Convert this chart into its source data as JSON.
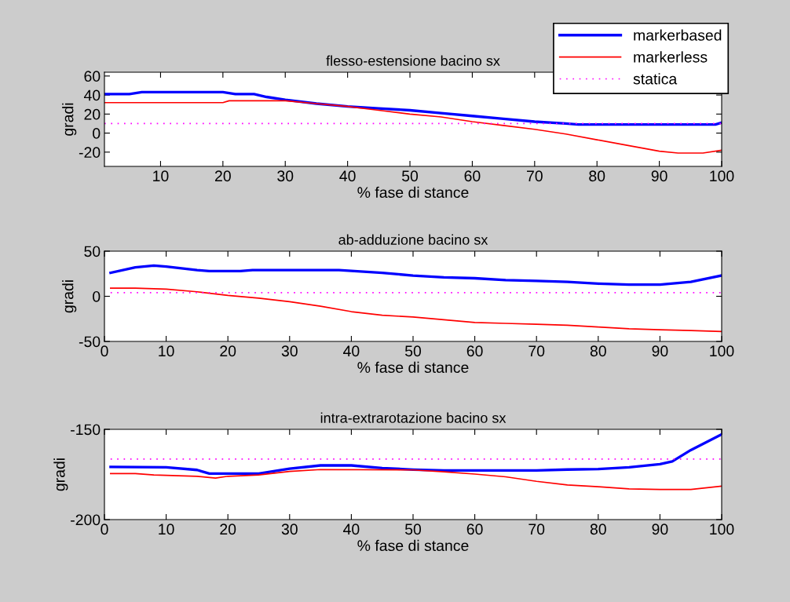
{
  "chart_data": [
    {
      "type": "line",
      "title": "flesso-estensione bacino sx",
      "xlabel": "% fase di stance",
      "ylabel": "gradi",
      "xlim": [
        1,
        100
      ],
      "xticks": [
        10,
        20,
        30,
        40,
        50,
        60,
        70,
        80,
        90,
        100
      ],
      "ylim": [
        -35,
        64
      ],
      "yticks": [
        -20,
        0,
        20,
        40,
        60
      ],
      "grid": false,
      "legend": "top right",
      "series": [
        {
          "name": "markerbased",
          "color": "#0000ff",
          "x": [
            1,
            5,
            7,
            10,
            15,
            20,
            22,
            25,
            27,
            30,
            35,
            40,
            45,
            50,
            55,
            60,
            65,
            70,
            75,
            77,
            80,
            90,
            95,
            99,
            100
          ],
          "values": [
            41,
            41,
            43,
            43,
            43,
            43,
            41,
            41,
            38,
            35,
            31,
            28,
            26,
            24,
            21,
            18,
            15,
            12,
            10,
            9,
            9,
            9,
            9,
            9,
            11
          ]
        },
        {
          "name": "markerless",
          "color": "#ff0000",
          "x": [
            1,
            10,
            20,
            21,
            30,
            35,
            40,
            45,
            50,
            55,
            60,
            65,
            70,
            75,
            80,
            85,
            90,
            93,
            97,
            100
          ],
          "values": [
            32,
            32,
            32,
            34,
            34,
            31,
            28,
            24,
            20,
            17,
            12,
            8,
            4,
            -1,
            -7,
            -13,
            -19,
            -21,
            -21,
            -18
          ]
        },
        {
          "name": "statica",
          "color": "#ff00ff",
          "line_style": "dotted",
          "x": [
            1,
            100
          ],
          "values": [
            10,
            10
          ]
        }
      ]
    },
    {
      "type": "line",
      "title": "ab-adduzione bacino sx",
      "xlabel": "% fase di stance",
      "ylabel": "gradi",
      "xlim": [
        0,
        100
      ],
      "xticks": [
        0,
        10,
        20,
        30,
        40,
        50,
        60,
        70,
        80,
        90,
        100
      ],
      "ylim": [
        -50,
        50
      ],
      "yticks": [
        -50,
        0,
        50
      ],
      "grid": false,
      "series": [
        {
          "color": "#0000ff",
          "x": [
            1,
            5,
            8,
            10,
            15,
            17,
            22,
            24,
            38,
            45,
            50,
            55,
            60,
            65,
            70,
            75,
            80,
            85,
            90,
            95,
            100
          ],
          "values": [
            26,
            32,
            34,
            33,
            29,
            28,
            28,
            29,
            29,
            26,
            23,
            21,
            20,
            18,
            17,
            16,
            14,
            13,
            13,
            16,
            23
          ]
        },
        {
          "color": "#ff0000",
          "x": [
            1,
            5,
            10,
            15,
            20,
            25,
            30,
            35,
            40,
            45,
            50,
            55,
            60,
            65,
            70,
            75,
            80,
            85,
            90,
            95,
            100
          ],
          "values": [
            9,
            9,
            8,
            5,
            1,
            -2,
            -6,
            -11,
            -17,
            -21,
            -23,
            -26,
            -29,
            -30,
            -31,
            -32,
            -34,
            -36,
            -37,
            -38,
            -39
          ]
        },
        {
          "color": "#ff00ff",
          "line_style": "dotted",
          "x": [
            1,
            100
          ],
          "values": [
            4,
            4
          ]
        }
      ]
    },
    {
      "type": "line",
      "title": "intra-extrarotazione bacino sx",
      "xlabel": "% fase di stance",
      "ylabel": "gradi",
      "xlim": [
        0,
        100
      ],
      "xticks": [
        0,
        10,
        20,
        30,
        40,
        50,
        60,
        70,
        80,
        90,
        100
      ],
      "ylim": [
        -200,
        -150
      ],
      "yticks": [
        -200,
        -150
      ],
      "grid": false,
      "series": [
        {
          "color": "#0000ff",
          "x": [
            1,
            10,
            15,
            17,
            25,
            30,
            35,
            40,
            45,
            50,
            55,
            70,
            75,
            80,
            85,
            90,
            92,
            95,
            100
          ],
          "values": [
            -170.8,
            -171,
            -172.5,
            -174.5,
            -174.5,
            -171.8,
            -170,
            -170,
            -171.5,
            -172.3,
            -172.8,
            -172.8,
            -172.3,
            -172,
            -171,
            -169.3,
            -167.8,
            -161.5,
            -152.8
          ]
        },
        {
          "color": "#ff0000",
          "x": [
            1,
            5,
            8,
            15,
            18,
            20,
            25,
            30,
            35,
            50,
            55,
            60,
            65,
            70,
            75,
            80,
            85,
            90,
            95,
            100
          ],
          "values": [
            -174.5,
            -174.5,
            -175.3,
            -176,
            -177,
            -176,
            -175.3,
            -173.3,
            -172.3,
            -172.5,
            -173.5,
            -174.8,
            -176.3,
            -178.8,
            -180.8,
            -181.8,
            -183,
            -183.3,
            -183.3,
            -181.5
          ]
        },
        {
          "color": "#ff00ff",
          "line_style": "dotted",
          "x": [
            1,
            100
          ],
          "values": [
            -166.5,
            -166.5
          ]
        }
      ]
    }
  ]
}
